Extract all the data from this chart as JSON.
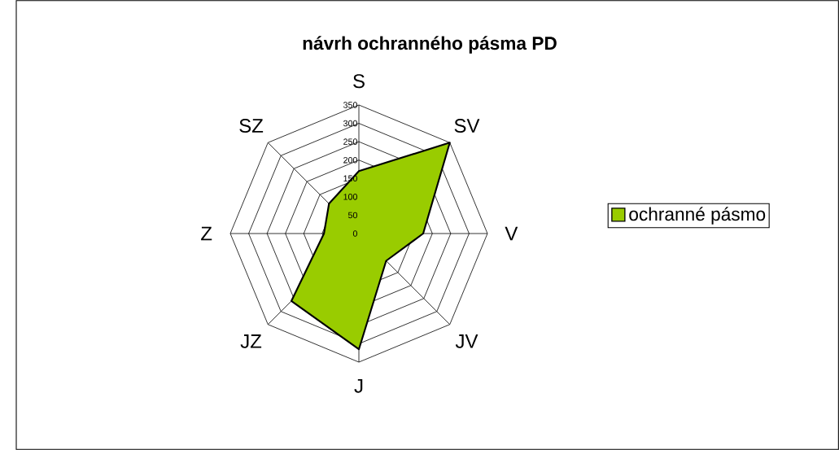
{
  "chart_data": {
    "type": "radar",
    "title": "návrh ochranného pásma PD",
    "categories": [
      "S",
      "SV",
      "V",
      "JV",
      "J",
      "JZ",
      "Z",
      "SZ"
    ],
    "series": [
      {
        "name": "ochranné pásmo",
        "color": "#99cc00",
        "values": [
          170,
          350,
          175,
          105,
          315,
          260,
          95,
          115
        ]
      }
    ],
    "ylim": [
      0,
      350
    ],
    "yticks": [
      0,
      50,
      100,
      150,
      200,
      250,
      300,
      350
    ],
    "grid": true,
    "legend": "right",
    "marker": "none"
  }
}
